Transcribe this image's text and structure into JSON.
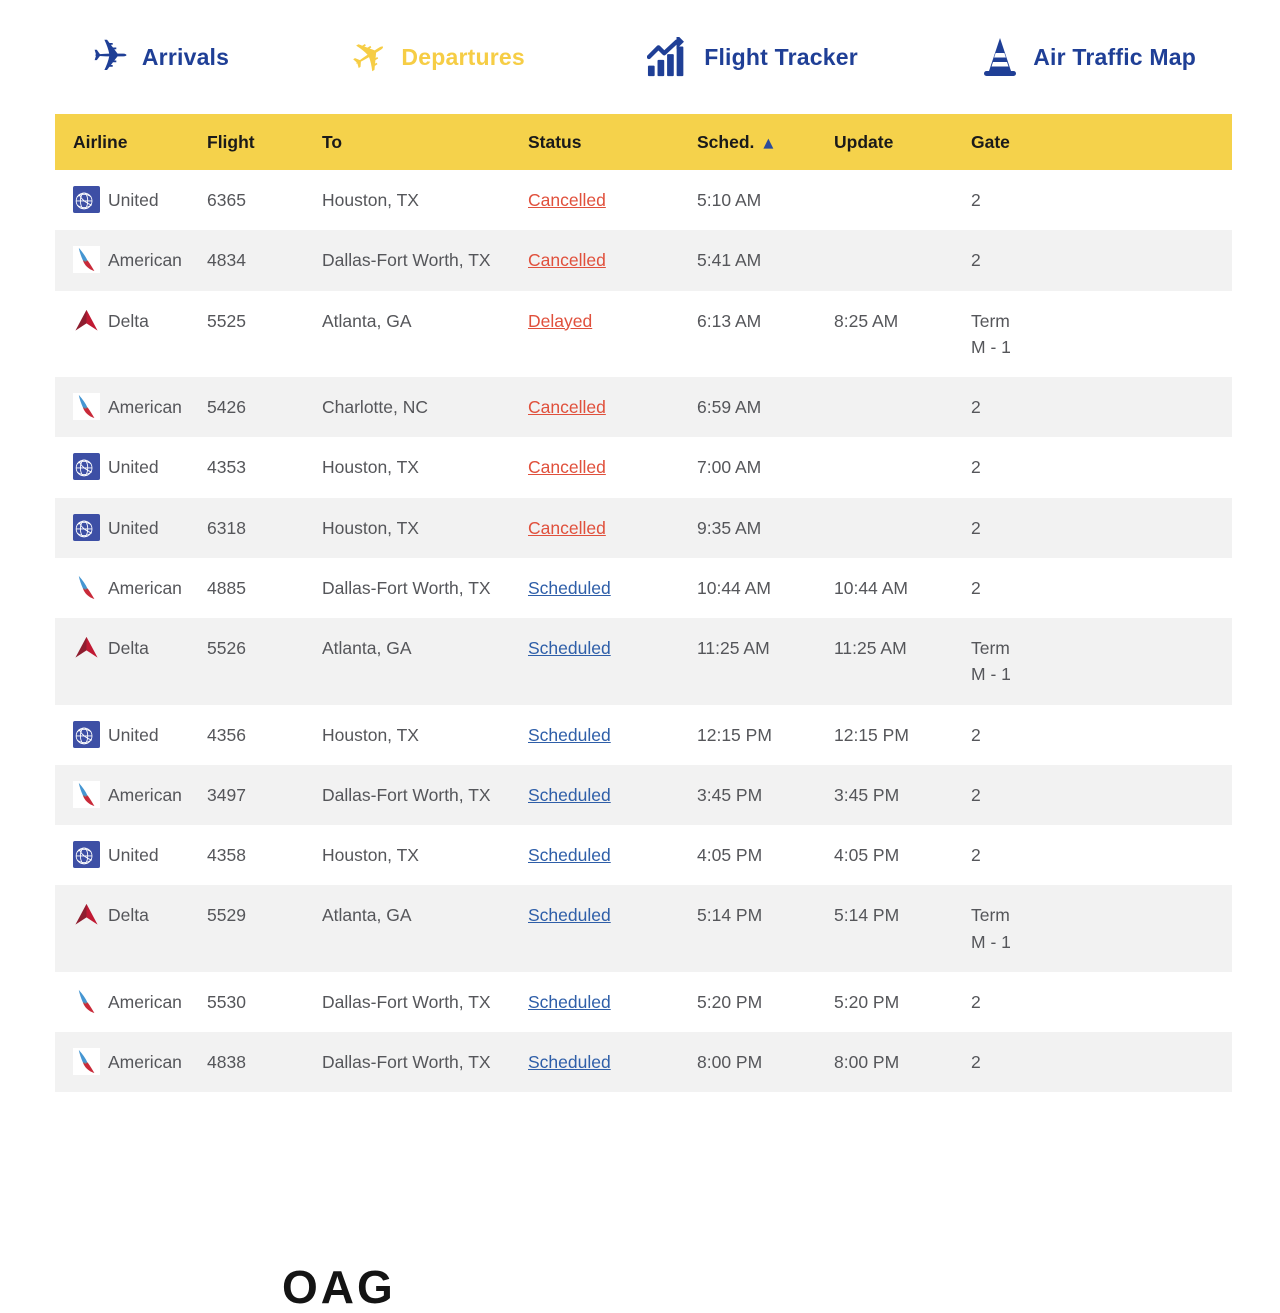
{
  "colors": {
    "navy": "#1F3F96",
    "yellow_header": "#F5D24B",
    "yellow_departures": "#F6CD45",
    "status_red": "#E0503C",
    "status_blue": "#2E5EA8",
    "cell_text": "#55565A",
    "alt_row_bg": "#F2F2F2",
    "header_text": "#1A1A1A"
  },
  "icons": {
    "plane": "✈",
    "sort_ascending": "▲"
  },
  "nav": {
    "items": [
      {
        "id": "arrivals",
        "label": "Arrivals",
        "icon": "plane-arrivals-icon",
        "active": false
      },
      {
        "id": "departures",
        "label": "Departures",
        "icon": "plane-departures-icon",
        "active": true
      },
      {
        "id": "flight-tracker",
        "label": "Flight Tracker",
        "icon": "bar-chart-trend-icon",
        "active": false
      },
      {
        "id": "air-traffic-map",
        "label": "Air Traffic Map",
        "icon": "traffic-cone-icon",
        "active": false
      }
    ]
  },
  "table": {
    "columns": [
      "Airline",
      "Flight",
      "To",
      "Status",
      "Sched.",
      "Update",
      "Gate"
    ],
    "sort": {
      "column": "Sched.",
      "direction": "ascending",
      "indicator": "▲"
    },
    "rows": [
      {
        "airline": "United",
        "flight": "6365",
        "to": "Houston, TX",
        "status": "Cancelled",
        "sched": "5:10 AM",
        "update": "",
        "gate": "2"
      },
      {
        "airline": "American",
        "flight": "4834",
        "to": "Dallas-Fort Worth, TX",
        "status": "Cancelled",
        "sched": "5:41 AM",
        "update": "",
        "gate": "2"
      },
      {
        "airline": "Delta",
        "flight": "5525",
        "to": "Atlanta, GA",
        "status": "Delayed",
        "sched": "6:13 AM",
        "update": "8:25 AM",
        "gate": [
          "Term",
          "M - 1"
        ]
      },
      {
        "airline": "American",
        "flight": "5426",
        "to": "Charlotte, NC",
        "status": "Cancelled",
        "sched": "6:59 AM",
        "update": "",
        "gate": "2"
      },
      {
        "airline": "United",
        "flight": "4353",
        "to": "Houston, TX",
        "status": "Cancelled",
        "sched": "7:00 AM",
        "update": "",
        "gate": "2"
      },
      {
        "airline": "United",
        "flight": "6318",
        "to": "Houston, TX",
        "status": "Cancelled",
        "sched": "9:35 AM",
        "update": "",
        "gate": "2"
      },
      {
        "airline": "American",
        "flight": "4885",
        "to": "Dallas-Fort Worth, TX",
        "status": "Scheduled",
        "sched": "10:44 AM",
        "update": "10:44 AM",
        "gate": "2"
      },
      {
        "airline": "Delta",
        "flight": "5526",
        "to": "Atlanta, GA",
        "status": "Scheduled",
        "sched": "11:25 AM",
        "update": "11:25 AM",
        "gate": [
          "Term",
          "M - 1"
        ]
      },
      {
        "airline": "United",
        "flight": "4356",
        "to": "Houston, TX",
        "status": "Scheduled",
        "sched": "12:15 PM",
        "update": "12:15 PM",
        "gate": "2"
      },
      {
        "airline": "American",
        "flight": "3497",
        "to": "Dallas-Fort Worth, TX",
        "status": "Scheduled",
        "sched": "3:45 PM",
        "update": "3:45 PM",
        "gate": "2"
      },
      {
        "airline": "United",
        "flight": "4358",
        "to": "Houston, TX",
        "status": "Scheduled",
        "sched": "4:05 PM",
        "update": "4:05 PM",
        "gate": "2"
      },
      {
        "airline": "Delta",
        "flight": "5529",
        "to": "Atlanta, GA",
        "status": "Scheduled",
        "sched": "5:14 PM",
        "update": "5:14 PM",
        "gate": [
          "Term",
          "M - 1"
        ]
      },
      {
        "airline": "American",
        "flight": "5530",
        "to": "Dallas-Fort Worth, TX",
        "status": "Scheduled",
        "sched": "5:20 PM",
        "update": "5:20 PM",
        "gate": "2"
      },
      {
        "airline": "American",
        "flight": "4838",
        "to": "Dallas-Fort Worth, TX",
        "status": "Scheduled",
        "sched": "8:00 PM",
        "update": "8:00 PM",
        "gate": "2"
      }
    ]
  },
  "footer": {
    "partial_text": "OAG"
  }
}
